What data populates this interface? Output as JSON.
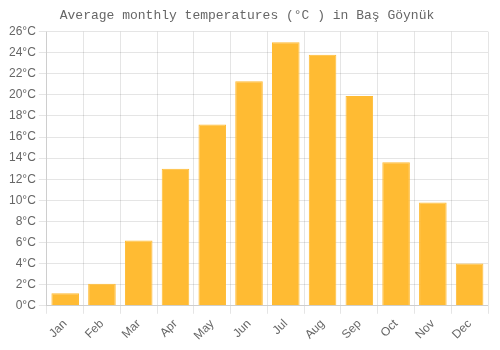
{
  "chart_data": {
    "type": "bar",
    "title": "Average monthly temperatures (°C ) in Baş Göynük",
    "categories": [
      "Jan",
      "Feb",
      "Mar",
      "Apr",
      "May",
      "Jun",
      "Jul",
      "Aug",
      "Sep",
      "Oct",
      "Nov",
      "Dec"
    ],
    "values": [
      1.2,
      2.1,
      6.2,
      13.0,
      17.2,
      21.3,
      25.0,
      23.8,
      19.9,
      13.6,
      9.8,
      4.0
    ],
    "color": "#FFBB33",
    "ylim": [
      0,
      26
    ],
    "yticks": [
      {
        "value": 0,
        "label": "0°C"
      },
      {
        "value": 2,
        "label": "2°C"
      },
      {
        "value": 4,
        "label": "4°C"
      },
      {
        "value": 6,
        "label": "6°C"
      },
      {
        "value": 8,
        "label": "8°C"
      },
      {
        "value": 10,
        "label": "10°C"
      },
      {
        "value": 12,
        "label": "12°C"
      },
      {
        "value": 14,
        "label": "14°C"
      },
      {
        "value": 16,
        "label": "16°C"
      },
      {
        "value": 18,
        "label": "18°C"
      },
      {
        "value": 20,
        "label": "20°C"
      },
      {
        "value": 22,
        "label": "22°C"
      },
      {
        "value": 24,
        "label": "24°C"
      },
      {
        "value": 26,
        "label": "26°C"
      }
    ],
    "grid": true
  }
}
